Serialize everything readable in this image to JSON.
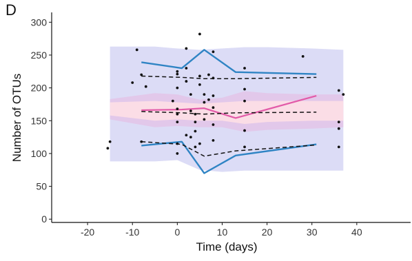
{
  "panel_label": "D",
  "chart_data": {
    "type": "line",
    "title": "",
    "xlabel": "Time (days)",
    "ylabel": "Number of OTUs",
    "xlim": [
      -28,
      52
    ],
    "ylim": [
      -5,
      315
    ],
    "xticks": [
      -20,
      -10,
      0,
      10,
      20,
      30,
      40
    ],
    "xtick_labels": [
      "-20",
      "-10",
      "0",
      "10",
      "20",
      "30",
      "40"
    ],
    "yticks": [
      0,
      50,
      100,
      150,
      200,
      250,
      300
    ],
    "ytick_labels": [
      "0",
      "50",
      "100",
      "150",
      "200",
      "250",
      "300"
    ],
    "grid": false,
    "legend": "none",
    "colors": {
      "outer_band": "#dcdcf6",
      "inner_band": "#fbdde6",
      "inner_band_edge": "#e2c8ea",
      "blue_line": "#2f84c4",
      "pink_line": "#e25aa8",
      "dashed_line": "#111111",
      "points": "#111111"
    },
    "bands": [
      {
        "role": "outer",
        "x": [
          -15,
          -5,
          0,
          5,
          10,
          15,
          20,
          30,
          37
        ],
        "upper": [
          263,
          263,
          260,
          258,
          260,
          262,
          262,
          260,
          258
        ],
        "lower": [
          88,
          88,
          90,
          75,
          72,
          74,
          74,
          74,
          74
        ]
      },
      {
        "role": "inner",
        "x": [
          -15,
          -5,
          0,
          5,
          10,
          15,
          20,
          30,
          37
        ],
        "upper": [
          183,
          192,
          190,
          182,
          185,
          195,
          192,
          190,
          190
        ],
        "lower": [
          152,
          140,
          142,
          140,
          140,
          133,
          136,
          138,
          140
        ]
      },
      {
        "role": "inner-core",
        "x": [
          -15,
          -5,
          0,
          5,
          10,
          15,
          20,
          30,
          37
        ],
        "upper": [
          178,
          180,
          178,
          176,
          178,
          180,
          180,
          180,
          180
        ],
        "lower": [
          158,
          150,
          152,
          150,
          150,
          145,
          148,
          150,
          150
        ]
      }
    ],
    "series": [
      {
        "style": "blue-solid",
        "x": [
          -8,
          1,
          6,
          13,
          31
        ],
        "y": [
          239,
          230,
          258,
          224,
          221
        ]
      },
      {
        "style": "blue-solid",
        "x": [
          -8,
          1,
          6,
          13,
          31
        ],
        "y": [
          112,
          118,
          70,
          97,
          114
        ]
      },
      {
        "style": "pink-solid",
        "x": [
          -8,
          1,
          6,
          13,
          31
        ],
        "y": [
          166,
          167,
          169,
          154,
          188
        ]
      },
      {
        "style": "black-dashed",
        "x": [
          -8,
          1,
          6,
          13,
          31
        ],
        "y": [
          218,
          216,
          214,
          214,
          216
        ]
      },
      {
        "style": "black-dashed",
        "x": [
          -8,
          1,
          6,
          13,
          31
        ],
        "y": [
          164,
          162,
          160,
          162,
          163
        ]
      },
      {
        "style": "black-dashed",
        "x": [
          -8,
          1,
          6,
          13,
          31
        ],
        "y": [
          118,
          114,
          96,
          104,
          113
        ]
      }
    ],
    "points": [
      [
        -15.5,
        108
      ],
      [
        -15,
        118
      ],
      [
        -9,
        258
      ],
      [
        -10,
        208
      ],
      [
        -8,
        220
      ],
      [
        -8,
        118
      ],
      [
        -7,
        202
      ],
      [
        0,
        221
      ],
      [
        0,
        225
      ],
      [
        0,
        200
      ],
      [
        0,
        168
      ],
      [
        0,
        160
      ],
      [
        0,
        148
      ],
      [
        0,
        115
      ],
      [
        0,
        100
      ],
      [
        -1,
        180
      ],
      [
        2,
        260
      ],
      [
        2,
        230
      ],
      [
        2,
        210
      ],
      [
        2,
        128
      ],
      [
        3,
        190
      ],
      [
        3,
        165
      ],
      [
        3,
        125
      ],
      [
        4,
        110
      ],
      [
        4,
        148
      ],
      [
        4,
        160
      ],
      [
        4,
        134
      ],
      [
        5,
        282
      ],
      [
        5,
        218
      ],
      [
        5,
        205
      ],
      [
        5,
        115
      ],
      [
        6,
        190
      ],
      [
        6,
        152
      ],
      [
        6,
        178
      ],
      [
        7,
        220
      ],
      [
        7,
        182
      ],
      [
        8,
        255
      ],
      [
        8,
        215
      ],
      [
        8,
        188
      ],
      [
        8,
        170
      ],
      [
        8,
        144
      ],
      [
        8,
        120
      ],
      [
        15,
        230
      ],
      [
        15,
        198
      ],
      [
        15,
        180
      ],
      [
        15,
        135
      ],
      [
        15,
        110
      ],
      [
        28,
        248
      ],
      [
        36,
        196
      ],
      [
        36,
        148
      ],
      [
        36,
        138
      ],
      [
        36,
        110
      ],
      [
        37,
        190
      ]
    ]
  }
}
